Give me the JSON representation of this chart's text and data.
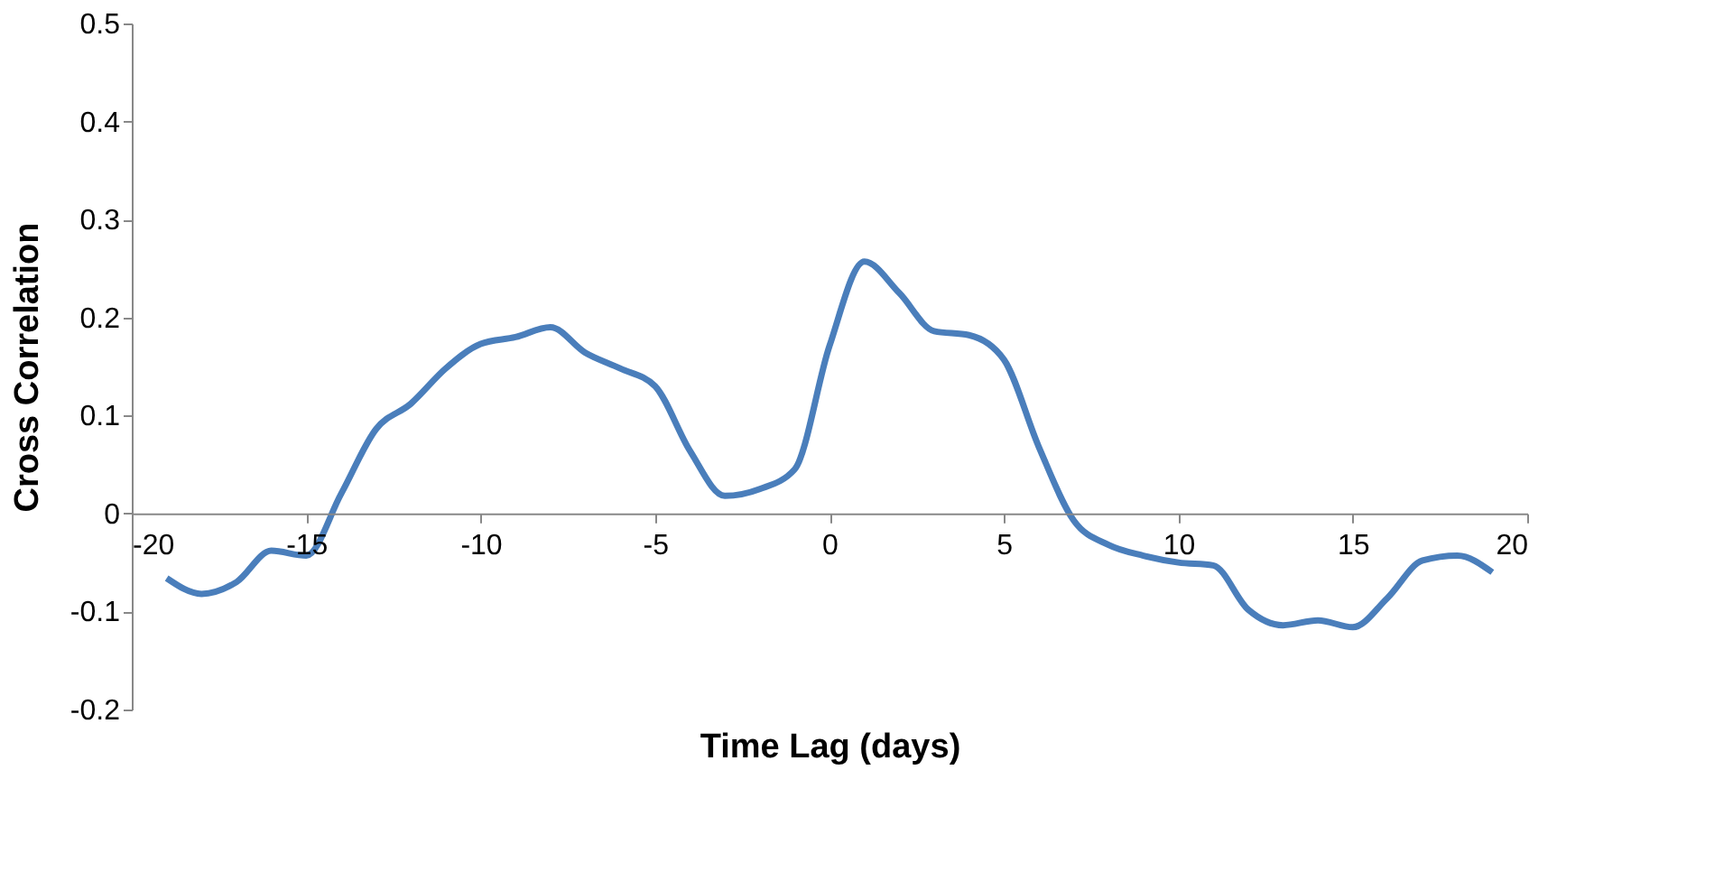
{
  "chart_data": {
    "type": "line",
    "xlabel": "Time Lag (days)",
    "ylabel": "Cross Correlation",
    "x": [
      -19,
      -18,
      -17,
      -16,
      -15,
      -14,
      -13,
      -12,
      -11,
      -10,
      -9,
      -8,
      -7,
      -6,
      -5,
      -4,
      -3,
      -2,
      -1,
      0,
      1,
      2,
      3,
      4,
      5,
      6,
      7,
      8,
      9,
      10,
      11,
      12,
      13,
      14,
      15,
      16,
      17,
      18,
      19
    ],
    "series": [
      {
        "color": "#4a7ebb",
        "values": [
          -0.066,
          -0.082,
          -0.07,
          -0.038,
          -0.043,
          0.02,
          0.086,
          0.112,
          0.148,
          0.173,
          0.18,
          0.19,
          0.164,
          0.148,
          0.13,
          0.064,
          0.018,
          0.025,
          0.045,
          0.171,
          0.257,
          0.225,
          0.186,
          0.182,
          0.157,
          0.068,
          -0.007,
          -0.032,
          -0.043,
          -0.05,
          -0.053,
          -0.098,
          -0.114,
          -0.109,
          -0.116,
          -0.086,
          -0.048,
          -0.043,
          -0.06
        ]
      }
    ],
    "xlim": [
      -20,
      20
    ],
    "xticks": [
      -20,
      -15,
      -10,
      -5,
      0,
      5,
      10,
      15,
      20
    ],
    "ylim": [
      -0.2,
      0.5
    ],
    "yticks": [
      -0.2,
      -0.1,
      0,
      0.1,
      0.2,
      0.3,
      0.4,
      0.5
    ],
    "grid": false,
    "marker": "none",
    "line_style": "solid"
  }
}
